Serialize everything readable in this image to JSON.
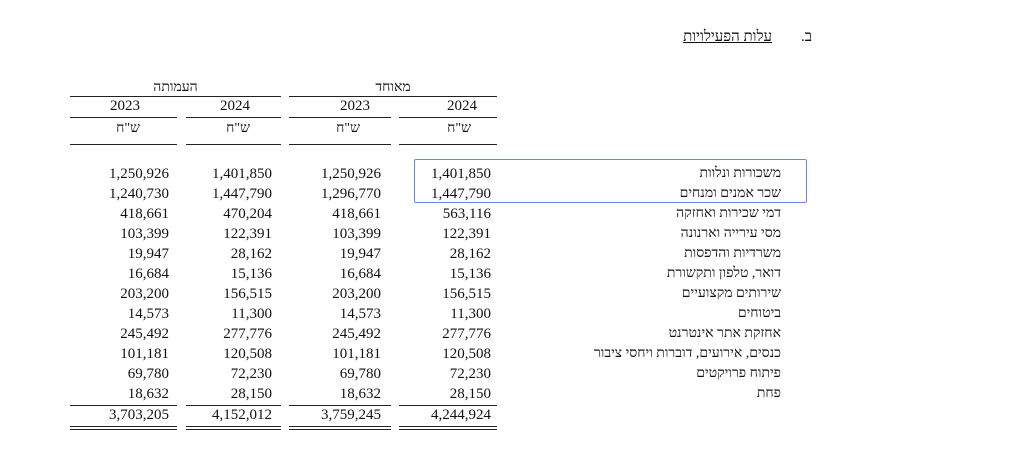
{
  "section": {
    "letter": "ב.",
    "title": "עלות הפעילויות"
  },
  "column_groups": {
    "consolidated": "מאוחד",
    "combined": "העמותה"
  },
  "years": [
    "2024",
    "2023",
    "2024",
    "2023"
  ],
  "unit": "ש\"ח",
  "rows": [
    {
      "label": "משכורות ונלוות",
      "values": [
        "1,401,850",
        "1,250,926",
        "1,401,850",
        "1,250,926"
      ]
    },
    {
      "label": "שכר אמנים ומנחים",
      "values": [
        "1,447,790",
        "1,296,770",
        "1,447,790",
        "1,240,730"
      ]
    },
    {
      "label": "דמי שכירות ואחזקה",
      "values": [
        "563,116",
        "418,661",
        "470,204",
        "418,661"
      ]
    },
    {
      "label": "מסי עירייה וארנונה",
      "values": [
        "122,391",
        "103,399",
        "122,391",
        "103,399"
      ]
    },
    {
      "label": "משרדיות והדפסות",
      "values": [
        "28,162",
        "19,947",
        "28,162",
        "19,947"
      ]
    },
    {
      "label": "דואר, טלפון ותקשורת",
      "values": [
        "15,136",
        "16,684",
        "15,136",
        "16,684"
      ]
    },
    {
      "label": "שירותים מקצועיים",
      "values": [
        "156,515",
        "203,200",
        "156,515",
        "203,200"
      ]
    },
    {
      "label": "ביטוחים",
      "values": [
        "11,300",
        "14,573",
        "11,300",
        "14,573"
      ]
    },
    {
      "label": "אחזקת אתר אינטרנט",
      "values": [
        "277,776",
        "245,492",
        "277,776",
        "245,492"
      ]
    },
    {
      "label": "כנסים, אירועים, דוברות ויחסי ציבור",
      "values": [
        "120,508",
        "101,181",
        "120,508",
        "101,181"
      ]
    },
    {
      "label": "פיתוח פרויקטים",
      "values": [
        "72,230",
        "69,780",
        "72,230",
        "69,780"
      ]
    },
    {
      "label": "פחת",
      "values": [
        "28,150",
        "18,632",
        "28,150",
        "18,632"
      ]
    }
  ],
  "totals": [
    "4,244,924",
    "3,759,245",
    "4,152,012",
    "3,703,205"
  ]
}
